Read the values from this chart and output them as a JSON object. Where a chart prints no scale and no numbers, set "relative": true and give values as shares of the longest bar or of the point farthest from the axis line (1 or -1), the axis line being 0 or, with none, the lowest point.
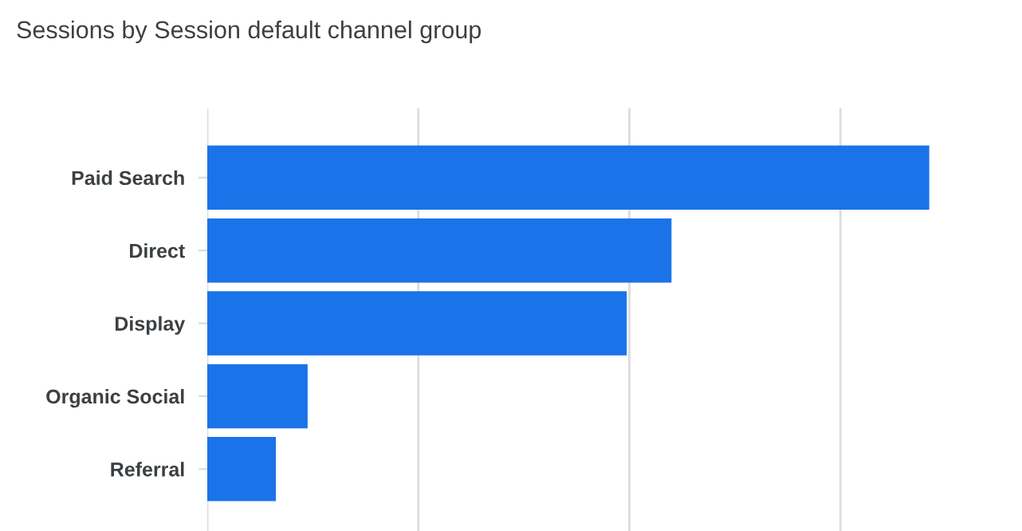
{
  "chart_data": {
    "type": "bar",
    "orientation": "horizontal",
    "relative": true,
    "title": "Sessions by Session default channel group",
    "categories": [
      "Paid Search",
      "Direct",
      "Display",
      "Organic Social",
      "Referral"
    ],
    "values": [
      1,
      0.643,
      0.581,
      0.139,
      0.095
    ],
    "color": "#1a73e8",
    "grid": "x"
  }
}
